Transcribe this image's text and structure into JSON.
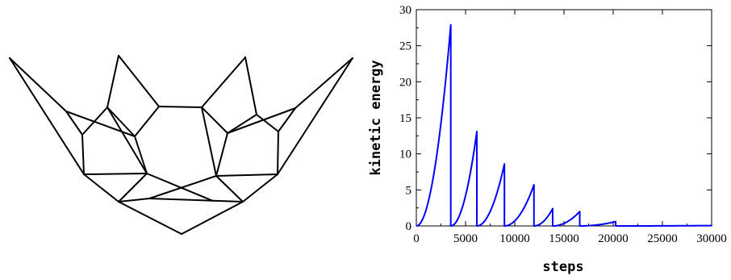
{
  "mesh": {
    "description_name": "wireframe-lattice",
    "vertices": [
      [
        12,
        72
      ],
      [
        437,
        72
      ],
      [
        147,
        69
      ],
      [
        304,
        71
      ],
      [
        82,
        138
      ],
      [
        133,
        133
      ],
      [
        197,
        132
      ],
      [
        250,
        133
      ],
      [
        318,
        142
      ],
      [
        366,
        134
      ],
      [
        102,
        167
      ],
      [
        167,
        169
      ],
      [
        282,
        165
      ],
      [
        345,
        163
      ],
      [
        182,
        215
      ],
      [
        268,
        218
      ],
      [
        104,
        216
      ],
      [
        344,
        216
      ],
      [
        147,
        250
      ],
      [
        185,
        246
      ],
      [
        264,
        249
      ],
      [
        301,
        250
      ],
      [
        225,
        290
      ]
    ],
    "edges": [
      [
        0,
        4
      ],
      [
        0,
        16
      ],
      [
        1,
        9
      ],
      [
        1,
        17
      ],
      [
        4,
        10
      ],
      [
        4,
        11
      ],
      [
        10,
        16
      ],
      [
        10,
        5
      ],
      [
        2,
        5
      ],
      [
        2,
        6
      ],
      [
        5,
        11
      ],
      [
        5,
        14
      ],
      [
        11,
        14
      ],
      [
        11,
        6
      ],
      [
        6,
        7
      ],
      [
        3,
        7
      ],
      [
        3,
        8
      ],
      [
        7,
        12
      ],
      [
        7,
        15
      ],
      [
        12,
        15
      ],
      [
        12,
        8
      ],
      [
        12,
        9
      ],
      [
        9,
        13
      ],
      [
        13,
        17
      ],
      [
        8,
        13
      ],
      [
        16,
        14
      ],
      [
        16,
        18
      ],
      [
        14,
        18
      ],
      [
        14,
        20
      ],
      [
        15,
        19
      ],
      [
        15,
        17
      ],
      [
        15,
        21
      ],
      [
        17,
        21
      ],
      [
        18,
        19
      ],
      [
        19,
        21
      ],
      [
        18,
        22
      ],
      [
        21,
        22
      ]
    ]
  },
  "chart_data": {
    "type": "line",
    "title": "",
    "xlabel": "steps",
    "ylabel": "kinetic energy",
    "xlim": [
      0,
      30000
    ],
    "ylim": [
      0,
      30
    ],
    "xticks": [
      0,
      5000,
      10000,
      15000,
      20000,
      25000,
      30000
    ],
    "yticks": [
      0,
      5,
      10,
      15,
      20,
      25,
      30
    ],
    "xtick_labels": [
      "0",
      "5000",
      "10000",
      "15000",
      "20000",
      "25000",
      "30000"
    ],
    "ytick_labels": [
      "0",
      "5",
      "10",
      "15",
      "20",
      "25",
      "30"
    ],
    "grid": false,
    "series": [
      {
        "color": "#0000ff",
        "segments": [
          {
            "start": 0,
            "end": 3500,
            "peak": 27.9
          },
          {
            "start": 3500,
            "end": 6150,
            "peak": 13.1
          },
          {
            "start": 6150,
            "end": 8950,
            "peak": 8.6
          },
          {
            "start": 8950,
            "end": 11950,
            "peak": 5.7
          },
          {
            "start": 11950,
            "end": 13850,
            "peak": 2.4
          },
          {
            "start": 13850,
            "end": 16600,
            "peak": 2.0
          },
          {
            "start": 16600,
            "end": 20250,
            "peak": 0.6
          },
          {
            "start": 20250,
            "end": 30000,
            "peak": 0.05
          }
        ]
      }
    ]
  }
}
